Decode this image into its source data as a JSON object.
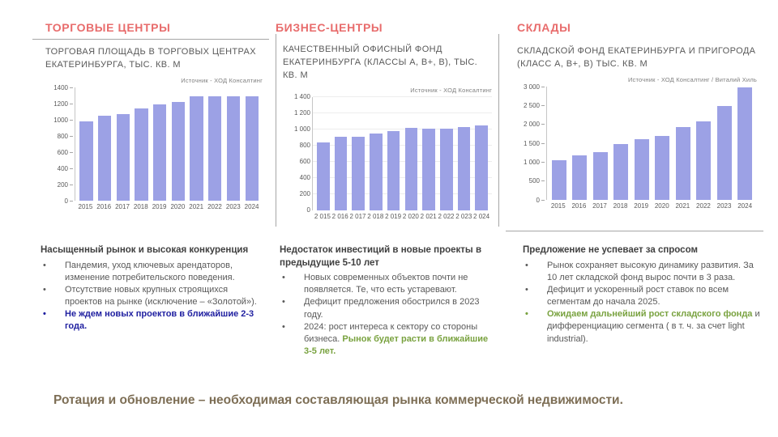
{
  "statement": {
    "text": "Ротация и обновление – необходимая составляющая рынка коммерческой недвижимости."
  },
  "colors": {
    "section_title": "#E86C6C",
    "bar": "#9CA1E5",
    "body_text": "#595959",
    "heading_text": "#404040",
    "accent_blue": "#1F1FA0",
    "accent_green": "#79A23F",
    "statement": "#7D6E55",
    "divider": "#A6A6A6"
  },
  "sections": [
    {
      "title": "ТОРГОВЫЕ ЦЕНТРЫ",
      "notes": {
        "heading": "Насыщенный рынок и высокая конкуренция",
        "bullets": [
          {
            "segments": [
              {
                "text": "Пандемия, уход ключевых арендаторов, изменение потребительского поведения.",
                "style": "normal"
              }
            ]
          },
          {
            "segments": [
              {
                "text": "Отсутствие новых крупных строящихся проектов на рынке (исключение – «Золотой»).",
                "style": "normal"
              }
            ]
          },
          {
            "segments": [
              {
                "text": "Не ждем новых проектов в ближайшие 2-3 года.",
                "style": "accent_blue"
              }
            ]
          }
        ]
      }
    },
    {
      "title": "БИЗНЕС-ЦЕНТРЫ",
      "notes": {
        "heading": "Недостаток инвестиций в новые проекты в предыдущие 5-10 лет",
        "bullets": [
          {
            "segments": [
              {
                "text": "Новых современных объектов почти не появляется. Те, что есть устаревают.",
                "style": "normal"
              }
            ]
          },
          {
            "segments": [
              {
                "text": "Дефицит предложения обострился в 2023 году.",
                "style": "normal"
              }
            ]
          },
          {
            "segments": [
              {
                "text": "2024: рост интереса к сектору со стороны бизнеса. ",
                "style": "normal"
              },
              {
                "text": "Рынок будет расти в ближайшие 3-5 лет.",
                "style": "accent_green"
              }
            ]
          }
        ]
      }
    },
    {
      "title": "СКЛАДЫ",
      "notes": {
        "heading": "Предложение не успевает за спросом",
        "bullets": [
          {
            "segments": [
              {
                "text": "Рынок сохраняет высокую динамику развития. За 10 лет складской фонд вырос почти в 3 раза.",
                "style": "normal"
              }
            ]
          },
          {
            "segments": [
              {
                "text": "Дефицит и ускоренный рост ставок по всем сегментам до начала 2025.",
                "style": "normal"
              }
            ]
          },
          {
            "segments": [
              {
                "text": "Ожидаем дальнейший рост складского фонда",
                "style": "accent_green"
              },
              {
                "text": " и дифференциацию сегмента ( в т. ч. за счет light industrial).",
                "style": "normal"
              }
            ]
          }
        ]
      }
    }
  ],
  "chart_data": [
    {
      "type": "bar",
      "title": "ТОРГОВАЯ ПЛОЩАДЬ В ТОРГОВЫХ ЦЕНТРАХ ЕКАТЕРИНБУРГА, ТЫС. КВ. М",
      "source": "Источник - ХОД Консалтинг",
      "categories": [
        "2015",
        "2016",
        "2017",
        "2018",
        "2019",
        "2020",
        "2021",
        "2022",
        "2023",
        "2024"
      ],
      "values": [
        985,
        1050,
        1075,
        1140,
        1195,
        1225,
        1290,
        1290,
        1290,
        1290
      ],
      "xlabel": "",
      "ylabel": "тыс. кв. м",
      "ylim": [
        0,
        1400
      ],
      "ytick_values": [
        0,
        200,
        400,
        600,
        800,
        1000,
        1200,
        1400
      ],
      "ytick_labels": [
        "0",
        "200",
        "400",
        "600",
        "800",
        "1000",
        "1200",
        "1400"
      ],
      "grid": false,
      "tick_dash": true,
      "legend": "none"
    },
    {
      "type": "bar",
      "title": "КАЧЕСТВЕННЫЙ ОФИСНЫЙ ФОНД ЕКАТЕРИНБУРГА (КЛАССЫ А, В+, В), ТЫС. КВ. М",
      "source": "Источник - ХОД Консалтинг",
      "categories": [
        "2 015",
        "2 016",
        "2 017",
        "2 018",
        "2 019",
        "2 020",
        "2 021",
        "2 022",
        "2 023",
        "2 024"
      ],
      "values": [
        840,
        905,
        910,
        950,
        980,
        1015,
        1010,
        1010,
        1025,
        1050
      ],
      "xlabel": "",
      "ylabel": "тыс. кв. м",
      "ylim": [
        0,
        1400
      ],
      "ytick_values": [
        0,
        200,
        400,
        600,
        800,
        1000,
        1200,
        1400
      ],
      "ytick_labels": [
        "0",
        "200",
        "400",
        "600",
        "800",
        "1 000",
        "1 200",
        "1 400"
      ],
      "grid": true,
      "tick_dash": false,
      "legend": "none"
    },
    {
      "type": "bar",
      "title": "СКЛАДСКОЙ ФОНД ЕКАТЕРИНБУРГА И ПРИГОРОДА (КЛАСС А, В+, В) ТЫС. КВ. М",
      "source": "Источник - ХОД Консалтинг / Виталий Хиль",
      "categories": [
        "2015",
        "2016",
        "2017",
        "2018",
        "2019",
        "2020",
        "2021",
        "2022",
        "2023",
        "2024"
      ],
      "values": [
        1060,
        1180,
        1270,
        1470,
        1600,
        1700,
        1930,
        2080,
        2480,
        2980
      ],
      "xlabel": "",
      "ylabel": "тыс. кв. м",
      "ylim": [
        0,
        3000
      ],
      "ytick_values": [
        0,
        500,
        1000,
        1500,
        2000,
        2500,
        3000
      ],
      "ytick_labels": [
        "0",
        "500",
        "1 000",
        "1 500",
        "2 000",
        "2 500",
        "3 000"
      ],
      "grid": false,
      "tick_dash": true,
      "legend": "none"
    }
  ]
}
